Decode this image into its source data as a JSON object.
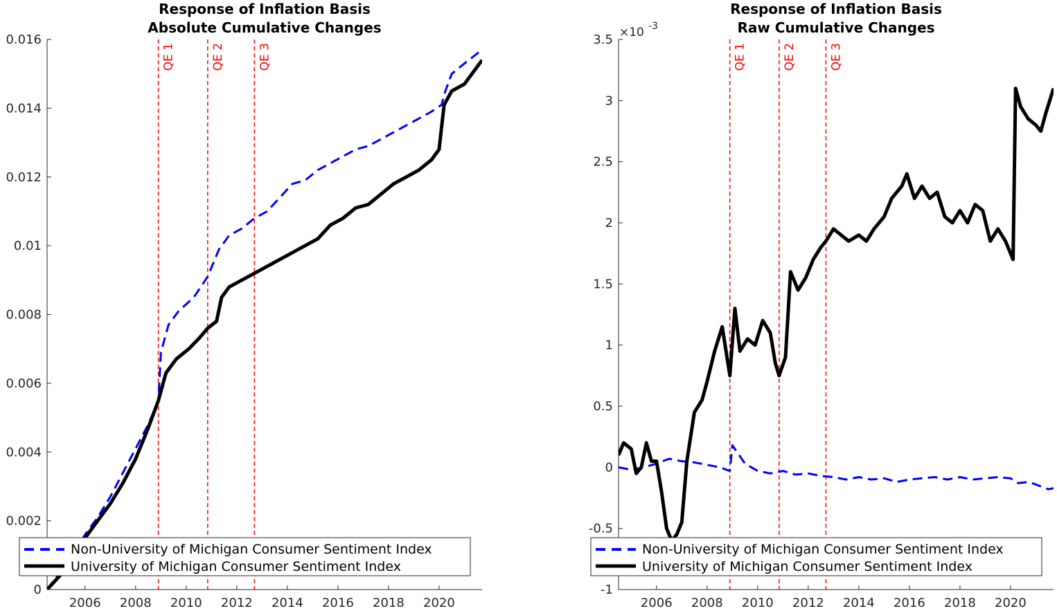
{
  "chart_data": [
    {
      "type": "line",
      "title": [
        "Response of Inflation Basis",
        "Absolute Cumulative Changes"
      ],
      "xlabel": "",
      "ylabel": "",
      "xlim": [
        2004.5,
        2021.7
      ],
      "ylim": [
        0,
        0.016
      ],
      "xticks": [
        2006,
        2008,
        2010,
        2012,
        2014,
        2016,
        2018,
        2020
      ],
      "yticks": [
        0,
        0.002,
        0.004,
        0.006,
        0.008,
        0.01,
        0.012,
        0.014,
        0.016
      ],
      "ytick_labels": [
        "0",
        "0.002",
        "0.004",
        "0.006",
        "0.008",
        "0.01",
        "0.012",
        "0.014",
        "0.016"
      ],
      "grid": false,
      "legend_position": "bottom",
      "vlines": [
        {
          "x": 2008.9,
          "label": "QE 1"
        },
        {
          "x": 2010.85,
          "label": "QE 2"
        },
        {
          "x": 2012.7,
          "label": "QE 3"
        }
      ],
      "series": [
        {
          "name": "Non-University of Michigan Consumer Sentiment Index",
          "color": "#0000ff",
          "style": "dashed",
          "x": [
            2004.5,
            2005.0,
            2005.5,
            2006.0,
            2006.5,
            2007.0,
            2007.5,
            2008.0,
            2008.5,
            2008.9,
            2009.0,
            2009.3,
            2009.7,
            2010.3,
            2010.85,
            2011.3,
            2011.7,
            2012.2,
            2012.7,
            2013.2,
            2013.7,
            2014.2,
            2014.7,
            2015.2,
            2015.7,
            2016.2,
            2016.7,
            2017.2,
            2017.7,
            2018.2,
            2018.7,
            2019.2,
            2019.7,
            2020.1,
            2020.2,
            2020.5,
            2021.0,
            2021.7
          ],
          "y": [
            0.0,
            0.0005,
            0.001,
            0.0016,
            0.0021,
            0.0027,
            0.0034,
            0.0041,
            0.0048,
            0.0055,
            0.0069,
            0.0077,
            0.0081,
            0.0085,
            0.0091,
            0.0099,
            0.0103,
            0.0105,
            0.0108,
            0.011,
            0.0114,
            0.0118,
            0.0119,
            0.0122,
            0.0124,
            0.0126,
            0.0128,
            0.0129,
            0.0131,
            0.0133,
            0.0135,
            0.0137,
            0.0139,
            0.0141,
            0.0144,
            0.015,
            0.0153,
            0.0157
          ]
        },
        {
          "name": "University of Michigan Consumer Sentiment Index",
          "color": "#000000",
          "style": "solid",
          "x": [
            2004.5,
            2005.0,
            2005.5,
            2006.0,
            2006.5,
            2007.0,
            2007.5,
            2008.0,
            2008.5,
            2008.9,
            2009.2,
            2009.6,
            2010.1,
            2010.5,
            2010.85,
            2011.2,
            2011.4,
            2011.7,
            2012.2,
            2012.7,
            2013.2,
            2013.7,
            2014.2,
            2014.7,
            2015.2,
            2015.7,
            2016.2,
            2016.7,
            2017.2,
            2017.7,
            2018.2,
            2018.7,
            2019.2,
            2019.7,
            2020.0,
            2020.2,
            2020.5,
            2021.0,
            2021.7
          ],
          "y": [
            0.0,
            0.0004,
            0.0009,
            0.0015,
            0.002,
            0.0025,
            0.0031,
            0.0038,
            0.0047,
            0.0055,
            0.0063,
            0.0067,
            0.007,
            0.0073,
            0.0076,
            0.0078,
            0.0085,
            0.0088,
            0.009,
            0.0092,
            0.0094,
            0.0096,
            0.0098,
            0.01,
            0.0102,
            0.0106,
            0.0108,
            0.0111,
            0.0112,
            0.0115,
            0.0118,
            0.012,
            0.0122,
            0.0125,
            0.0128,
            0.0141,
            0.0145,
            0.0147,
            0.0154
          ]
        }
      ]
    },
    {
      "type": "line",
      "title": [
        "Response of Inflation Basis",
        "Raw Cumulative Changes"
      ],
      "xlabel": "",
      "ylabel": "",
      "y_exponent": "×10",
      "y_exponent_power": "-3",
      "xlim": [
        2004.5,
        2021.7
      ],
      "ylim": [
        -1,
        3.5
      ],
      "xticks": [
        2006,
        2008,
        2010,
        2012,
        2014,
        2016,
        2018,
        2020
      ],
      "yticks": [
        -1,
        -0.5,
        0,
        0.5,
        1,
        1.5,
        2,
        2.5,
        3,
        3.5
      ],
      "ytick_labels": [
        "-1",
        "-0.5",
        "0",
        "0.5",
        "1",
        "1.5",
        "2",
        "2.5",
        "3",
        "3.5"
      ],
      "grid": false,
      "legend_position": "bottom",
      "vlines": [
        {
          "x": 2008.9,
          "label": "QE 1"
        },
        {
          "x": 2010.85,
          "label": "QE 2"
        },
        {
          "x": 2012.7,
          "label": "QE 3"
        }
      ],
      "series": [
        {
          "name": "Non-University of Michigan Consumer Sentiment Index",
          "color": "#0000ff",
          "style": "dashed",
          "x": [
            2004.5,
            2005.0,
            2005.5,
            2006.0,
            2006.5,
            2007.0,
            2007.5,
            2008.0,
            2008.5,
            2008.9,
            2009.0,
            2009.2,
            2009.5,
            2010.0,
            2010.5,
            2011.0,
            2011.5,
            2012.0,
            2012.5,
            2013.0,
            2013.5,
            2014.0,
            2014.5,
            2015.0,
            2015.5,
            2016.0,
            2016.5,
            2017.0,
            2017.5,
            2018.0,
            2018.5,
            2019.0,
            2019.5,
            2020.0,
            2020.3,
            2020.7,
            2021.0,
            2021.5,
            2021.7
          ],
          "y": [
            0.0,
            -0.02,
            0.0,
            0.03,
            0.07,
            0.05,
            0.04,
            0.02,
            0.0,
            -0.03,
            0.18,
            0.12,
            0.03,
            -0.03,
            -0.05,
            -0.03,
            -0.06,
            -0.05,
            -0.07,
            -0.08,
            -0.1,
            -0.08,
            -0.1,
            -0.09,
            -0.12,
            -0.1,
            -0.09,
            -0.08,
            -0.1,
            -0.08,
            -0.1,
            -0.09,
            -0.08,
            -0.09,
            -0.13,
            -0.12,
            -0.14,
            -0.18,
            -0.17
          ]
        },
        {
          "name": "University of Michigan Consumer Sentiment Index",
          "color": "#000000",
          "style": "solid",
          "x": [
            2004.5,
            2004.7,
            2005.0,
            2005.2,
            2005.4,
            2005.6,
            2005.8,
            2006.0,
            2006.2,
            2006.4,
            2006.6,
            2006.8,
            2007.0,
            2007.2,
            2007.5,
            2007.8,
            2008.0,
            2008.3,
            2008.6,
            2008.9,
            2009.1,
            2009.3,
            2009.6,
            2009.9,
            2010.2,
            2010.5,
            2010.7,
            2010.85,
            2011.1,
            2011.3,
            2011.6,
            2011.9,
            2012.2,
            2012.5,
            2012.7,
            2013.0,
            2013.3,
            2013.6,
            2014.0,
            2014.3,
            2014.6,
            2015.0,
            2015.3,
            2015.7,
            2015.9,
            2016.2,
            2016.5,
            2016.8,
            2017.1,
            2017.4,
            2017.7,
            2018.0,
            2018.3,
            2018.6,
            2018.9,
            2019.2,
            2019.5,
            2019.8,
            2020.1,
            2020.2,
            2020.4,
            2020.7,
            2021.0,
            2021.2,
            2021.4,
            2021.7
          ],
          "y": [
            0.1,
            0.2,
            0.15,
            -0.05,
            0.0,
            0.2,
            0.05,
            0.05,
            -0.2,
            -0.5,
            -0.6,
            -0.55,
            -0.45,
            0.05,
            0.45,
            0.55,
            0.7,
            0.95,
            1.15,
            0.75,
            1.3,
            0.95,
            1.05,
            1.0,
            1.2,
            1.1,
            0.85,
            0.75,
            0.9,
            1.6,
            1.45,
            1.55,
            1.7,
            1.8,
            1.85,
            1.95,
            1.9,
            1.85,
            1.9,
            1.85,
            1.95,
            2.05,
            2.2,
            2.3,
            2.4,
            2.2,
            2.3,
            2.2,
            2.25,
            2.05,
            2.0,
            2.1,
            2.0,
            2.15,
            2.1,
            1.85,
            1.95,
            1.85,
            1.7,
            3.1,
            2.95,
            2.85,
            2.8,
            2.75,
            2.9,
            3.1
          ]
        }
      ]
    }
  ]
}
